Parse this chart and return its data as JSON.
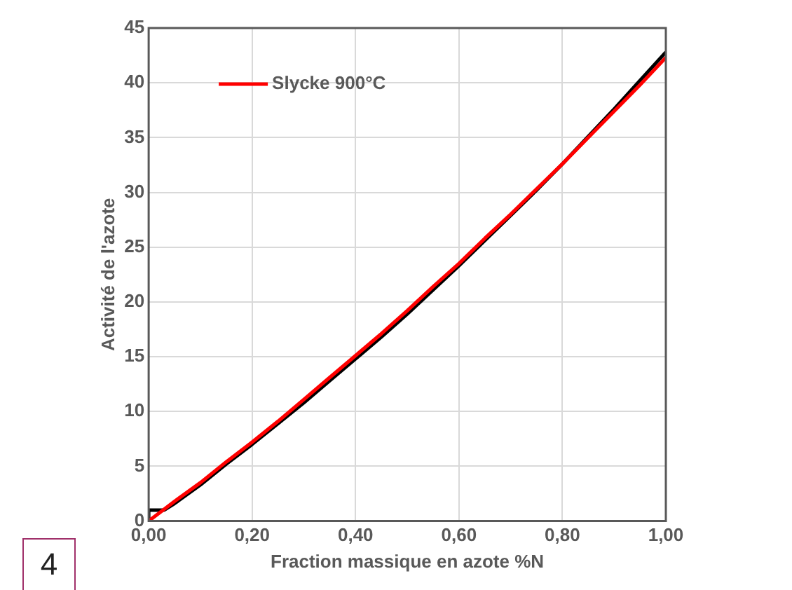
{
  "chart_data": {
    "type": "line",
    "xlabel": "Fraction massique en azote %N",
    "ylabel": "Activité de l'azote",
    "annotations": [
      "4"
    ],
    "xlim": [
      0,
      1
    ],
    "xticks": [
      {
        "value": 0,
        "label": "0,00"
      },
      {
        "value": 0.2,
        "label": "0,20"
      },
      {
        "value": 0.4,
        "label": "0,40"
      },
      {
        "value": 0.6,
        "label": "0,60"
      },
      {
        "value": 0.8,
        "label": "0,80"
      },
      {
        "value": 1,
        "label": "1,00"
      }
    ],
    "ylim": [
      0,
      45
    ],
    "yticks": [
      0,
      5,
      10,
      15,
      20,
      25,
      30,
      35,
      40,
      45
    ],
    "grid": true,
    "legend": "top left",
    "marker": "none",
    "line_style": "solid",
    "series": [
      {
        "name": "Slycke 900°C",
        "color": "#ff0000",
        "x": [
          0,
          0.05,
          0.1,
          0.15,
          0.2,
          0.25,
          0.3,
          0.35,
          0.4,
          0.45,
          0.5,
          0.55,
          0.6,
          0.65,
          0.7,
          0.75,
          0.8,
          0.85,
          0.9,
          0.95,
          1
        ],
        "values": [
          0,
          1.8,
          3.5,
          5.4,
          7.2,
          9.1,
          11.1,
          13.1,
          15.1,
          17.1,
          19.2,
          21.4,
          23.5,
          25.8,
          28.0,
          30.3,
          32.6,
          35.0,
          37.4,
          39.8,
          42.3
        ]
      },
      {
        "color": "#000000",
        "x": [
          0,
          0,
          0.03,
          0.05,
          0.1,
          0.15,
          0.2,
          0.25,
          0.3,
          0.35,
          0.4,
          0.45,
          0.5,
          0.55,
          0.6,
          0.65,
          0.7,
          0.75,
          0.8,
          0.85,
          0.9,
          0.95,
          1
        ],
        "values": [
          0,
          1,
          1,
          1.6,
          3.3,
          5.2,
          7.0,
          8.9,
          10.8,
          12.8,
          14.8,
          16.8,
          18.9,
          21.1,
          23.3,
          25.6,
          27.9,
          30.2,
          32.6,
          35.1,
          37.6,
          40.2,
          42.8
        ]
      }
    ]
  }
}
